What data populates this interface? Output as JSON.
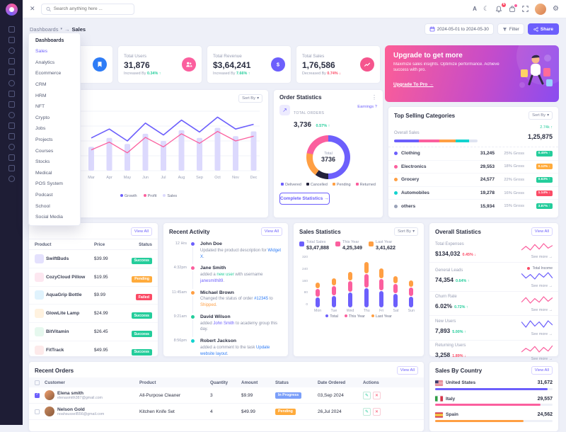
{
  "colors": {
    "primary": "#6c5ffc",
    "pink": "#fb5f9e",
    "orange": "#ff9f43",
    "green": "#24cd9b",
    "red": "#fb4b66",
    "info": "#2e7cf6"
  },
  "header": {
    "search_placeholder": "Search anything here ...",
    "bell_badge": "5"
  },
  "breadcrumb": {
    "root": "Dashboards",
    "current": "Sales"
  },
  "toolbar": {
    "date_range": "2024-05-01 to 2024-05-30",
    "filter": "Filter",
    "share": "Share"
  },
  "menu": {
    "header": "Dashboards",
    "active": "Sales",
    "items": [
      "Sales",
      "Analytics",
      "Ecommerce",
      "CRM",
      "HRM",
      "NFT",
      "Crypto",
      "Jobs",
      "Projects",
      "Courses",
      "Stocks",
      "Medical",
      "POS System",
      "Podcast",
      "School",
      "Social Media"
    ]
  },
  "stat_cards": [
    {
      "label": "",
      "value": "",
      "delta_label": "",
      "delta": "",
      "trend": "",
      "icon": "bookmark-icon",
      "icon_color": "#2e7cf6"
    },
    {
      "label": "Total Users",
      "value": "31,876",
      "delta_label": "Increased By",
      "delta": "0.34%",
      "trend": "up",
      "icon": "users-icon",
      "icon_color": "#fb5f9e"
    },
    {
      "label": "Total Revenue",
      "value": "$3,64,241",
      "delta_label": "Increased By",
      "delta": "7.66%",
      "trend": "up",
      "icon": "dollar-icon",
      "icon_color": "#6c5ffc"
    },
    {
      "label": "Total Sales",
      "value": "1,76,586",
      "delta_label": "Decreased By",
      "delta": "0.74%",
      "trend": "down",
      "icon": "sales-icon",
      "icon_color": "#f5558d"
    }
  ],
  "upgrade": {
    "title": "Upgrade to get more",
    "body": "Maximize sales insights. Optimize performance. Achieve success with pro.",
    "cta": "Upgrade To Pro →"
  },
  "sales_overview": {
    "sort_label": "Sort By",
    "months": [
      "Mar",
      "Apr",
      "May",
      "Jun",
      "Jul",
      "Aug",
      "Sep",
      "Oct",
      "Nov",
      "Dec"
    ],
    "legend": [
      {
        "name": "Growth",
        "color": "#6c5ffc"
      },
      {
        "name": "Profit",
        "color": "#fb5f9e"
      },
      {
        "name": "Sales",
        "color": "#dcd9fd"
      }
    ],
    "growth": [
      55,
      70,
      50,
      80,
      60,
      85,
      65,
      90,
      70,
      78
    ],
    "profit": [
      35,
      48,
      30,
      56,
      40,
      62,
      46,
      66,
      50,
      58
    ],
    "sales_bars": [
      40,
      55,
      45,
      62,
      50,
      68,
      55,
      72,
      58,
      66
    ]
  },
  "order_statistics": {
    "title": "Order Statistics",
    "earnings": "Earnings ?",
    "total_label": "TOTAL ORDERS",
    "total_value": "3,736",
    "delta": "0.57% ↑",
    "donut_center_label": "Total",
    "donut_center_value": "3736",
    "segments": [
      {
        "label": "Delivered",
        "pct": 50,
        "color": "#6c5ffc"
      },
      {
        "label": "Cancelled",
        "pct": 10,
        "color": "#23223c"
      },
      {
        "label": "Pending",
        "pct": 18,
        "color": "#ff9f43"
      },
      {
        "label": "Returned",
        "pct": 22,
        "color": "#fb5f9e"
      }
    ],
    "cta": "Complete Statistics →"
  },
  "top_categories": {
    "title": "Top Selling Categories",
    "sort_label": "Sort By",
    "overall_label": "Overall Sales",
    "overall_delta": "2.74k ↑",
    "overall_value": "1,25,875",
    "bar": [
      {
        "color": "#6c5ffc",
        "pct": 30
      },
      {
        "color": "#fb5f9e",
        "pct": 24
      },
      {
        "color": "#ff9f43",
        "pct": 20
      },
      {
        "color": "#12d3cf",
        "pct": 16
      },
      {
        "color": "#dfe3f1",
        "pct": 10
      }
    ],
    "rows": [
      {
        "name": "Clothing",
        "dot": "#6c5ffc",
        "value": "31,245",
        "gross": "25% Gross",
        "badge": "0.45% ↑",
        "badge_type": "success"
      },
      {
        "name": "Electronics",
        "dot": "#fb5f9e",
        "value": "29,553",
        "gross": "18% Gross",
        "badge": "0.12% ↓",
        "badge_type": "warning"
      },
      {
        "name": "Grocery",
        "dot": "#ff9f43",
        "value": "24,577",
        "gross": "22% Gross",
        "badge": "0.63% ↑",
        "badge_type": "success"
      },
      {
        "name": "Automobiles",
        "dot": "#12d3cf",
        "value": "19,278",
        "gross": "16% Gross",
        "badge": "1.14% ↓",
        "badge_type": "danger"
      },
      {
        "name": "others",
        "dot": "#9aa2b8",
        "value": "15,934",
        "gross": "15% Gross",
        "badge": "3.87% ↑",
        "badge_type": "success"
      }
    ]
  },
  "products": {
    "view_all": "View All",
    "columns": [
      "Product",
      "Price",
      "Status"
    ],
    "rows": [
      {
        "name": "SwiftBuds",
        "price": "$39.99",
        "status": "Success",
        "type": "success",
        "thumb": "#e4e1fd"
      },
      {
        "name": "CozyCloud Pillow",
        "price": "$19.95",
        "status": "Pending",
        "type": "warning",
        "thumb": "#fde7f0"
      },
      {
        "name": "AquaGrip Bottle",
        "price": "$9.99",
        "status": "Failed",
        "type": "danger",
        "thumb": "#e0f3fd"
      },
      {
        "name": "GlowLite Lamp",
        "price": "$24.99",
        "status": "Success",
        "type": "success",
        "thumb": "#fff2df"
      },
      {
        "name": "BitVitamin",
        "price": "$26.45",
        "status": "Success",
        "type": "success",
        "thumb": "#e6f8ee"
      },
      {
        "name": "FitTrack",
        "price": "$49.95",
        "status": "Success",
        "type": "success",
        "thumb": "#fdeaea"
      }
    ]
  },
  "activity": {
    "title": "Recent Activity",
    "view_all": "View All",
    "items": [
      {
        "time": "12 Hrs",
        "name": "John Doe",
        "dot": "#6c5ffc",
        "segments": [
          {
            "text": "Updated the product description for "
          },
          {
            "text": "Widget X",
            "color": "#2e7cf6"
          },
          {
            "text": "."
          }
        ]
      },
      {
        "time": "4:32pm",
        "name": "Jane Smith",
        "dot": "#fb5f9e",
        "segments": [
          {
            "text": "added a "
          },
          {
            "text": "new user",
            "color": "#24cd9b"
          },
          {
            "text": " with username "
          },
          {
            "text": "janesmith89",
            "color": "#6c5ffc"
          },
          {
            "text": "."
          }
        ]
      },
      {
        "time": "11:45am",
        "name": "Michael Brown",
        "dot": "#ff9f43",
        "segments": [
          {
            "text": "Changed the status of order "
          },
          {
            "text": "#12345",
            "color": "#2e7cf6"
          },
          {
            "text": " to "
          },
          {
            "text": "Shipped",
            "color": "#ff9f43"
          },
          {
            "text": "."
          }
        ]
      },
      {
        "time": "9:21am",
        "name": "David Wilson",
        "dot": "#24cd9b",
        "segments": [
          {
            "text": "added "
          },
          {
            "text": "John Smith",
            "color": "#6c5ffc"
          },
          {
            "text": " to academy group this day."
          }
        ]
      },
      {
        "time": "8:56pm",
        "name": "Robert Jackson",
        "dot": "#12d3cf",
        "segments": [
          {
            "text": "added a comment to the task "
          },
          {
            "text": "Update website layout",
            "color": "#2e7cf6"
          },
          {
            "text": "."
          }
        ]
      }
    ]
  },
  "sales_statistics": {
    "title": "Sales Statistics",
    "sort_label": "Sort By",
    "summary": [
      {
        "label": "Total Sales",
        "value": "$3,47,888",
        "color": "#6c5ffc"
      },
      {
        "label": "This Year",
        "value": "4,25,349",
        "color": "#fb5f9e"
      },
      {
        "label": "Last Year",
        "value": "3,41,622",
        "color": "#ff9f43"
      }
    ],
    "y_ticks": [
      "320",
      "240",
      "160",
      "80",
      "0"
    ],
    "days": [
      "Mon",
      "Tue",
      "Wed",
      "Thu",
      "Fri",
      "Sat",
      "Sun"
    ],
    "series": [
      {
        "name": "Total",
        "color": "#6c5ffc",
        "values": [
          70,
          80,
          100,
          130,
          110,
          90,
          75
        ]
      },
      {
        "name": "This Year",
        "color": "#fb5f9e",
        "values": [
          50,
          60,
          75,
          95,
          80,
          65,
          55
        ]
      },
      {
        "name": "Last Year",
        "color": "#ff9f43",
        "values": [
          40,
          50,
          60,
          75,
          65,
          50,
          45
        ]
      }
    ]
  },
  "overall_statistics": {
    "title": "Overall Statistics",
    "view_all": "View All",
    "rows": [
      {
        "label": "Total Expenses",
        "value": "$134,032",
        "delta": "0.45% ↓",
        "delta_color": "#fb4b66",
        "spark": "#fb5f9e",
        "points": [
          5,
          9,
          5,
          11,
          6,
          12,
          7,
          10
        ],
        "see_more": "See more →"
      },
      {
        "label": "General Leads",
        "value": "74,354",
        "delta": "0.64% ↑",
        "delta_color": "#24cd9b",
        "legend": "Total Income",
        "legend_dot": "#fb4b66",
        "spark": "#6c5ffc",
        "points": [
          10,
          5,
          9,
          4,
          10,
          6,
          11,
          5
        ],
        "see_more": "See more →"
      },
      {
        "label": "Churn Rate",
        "value": "6.02%",
        "delta": "0.72% ↑",
        "delta_color": "#24cd9b",
        "spark": "#fb5f9e",
        "points": [
          5,
          10,
          4,
          9,
          5,
          11,
          6,
          10
        ],
        "see_more": "See more →"
      },
      {
        "label": "New Users",
        "value": "7,893",
        "delta": "5.00% ↑",
        "delta_color": "#24cd9b",
        "spark": "#6c5ffc",
        "points": [
          9,
          4,
          10,
          5,
          9,
          4,
          10,
          6
        ],
        "see_more": "See more →"
      },
      {
        "label": "Returning Users",
        "value": "3,258",
        "delta": "1.89% ↓",
        "delta_color": "#fb4b66",
        "spark": "#fb5f9e",
        "points": [
          4,
          8,
          5,
          10,
          4,
          9,
          5,
          11
        ],
        "see_more": "See more →"
      }
    ]
  },
  "recent_orders": {
    "title": "Recent Orders",
    "view_all": "View All",
    "columns": [
      "Customer",
      "Product",
      "Quantity",
      "Amount",
      "Status",
      "Date Ordered",
      "Actions"
    ],
    "rows": [
      {
        "checked": true,
        "name": "Elena smith",
        "email": "elenasmith387@gmail.com",
        "product": "All-Purpose Cleaner",
        "qty": "3",
        "amount": "$9.99",
        "status": "In Progress",
        "status_type": "info",
        "date": "03,Sep 2024",
        "avatar": "#f2a16e"
      },
      {
        "checked": false,
        "name": "Nelson Gold",
        "email": "noahsussell556@gmail.com",
        "product": "Kitchen Knife Set",
        "qty": "4",
        "amount": "$49.99",
        "status": "Pending",
        "status_type": "warning",
        "date": "26,Jul 2024",
        "avatar": "#c98a5e"
      }
    ]
  },
  "sales_by_country": {
    "title": "Sales By Country",
    "view_all": "View All",
    "rows": [
      {
        "country": "United States",
        "value": "31,672",
        "color": "#6c5ffc",
        "pct": 96,
        "flag": "us"
      },
      {
        "country": "Italy",
        "value": "29,557",
        "color": "#fb5f9e",
        "pct": 90,
        "flag": "it"
      },
      {
        "country": "Spain",
        "value": "24,562",
        "color": "#ff9f43",
        "pct": 75,
        "flag": "es"
      }
    ]
  }
}
